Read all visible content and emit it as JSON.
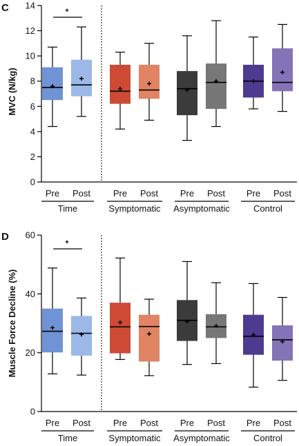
{
  "chart_data": [
    {
      "type": "boxplot",
      "panel": "C",
      "ylabel": "MVC (N/kg)",
      "ylim": [
        0,
        14
      ],
      "yticks": [
        "0",
        "2",
        "4",
        "6",
        "8",
        "10",
        "12",
        "14"
      ],
      "significance_marker": "*",
      "groups": [
        {
          "name": "Time",
          "categories": [
            {
              "label": "Pre",
              "color": "#6f93d4",
              "min": 4.4,
              "q1": 6.5,
              "median": 7.5,
              "q3": 9.1,
              "max": 10.7,
              "mean": 7.6
            },
            {
              "label": "Post",
              "color": "#9bb8e8",
              "min": 5.2,
              "q1": 6.8,
              "median": 7.7,
              "q3": 9.7,
              "max": 12.3,
              "mean": 8.2
            }
          ]
        },
        {
          "name": "Symptomatic",
          "categories": [
            {
              "label": "Pre",
              "color": "#cd4b34",
              "min": 4.2,
              "q1": 6.2,
              "median": 7.2,
              "q3": 9.3,
              "max": 10.3,
              "mean": 7.4
            },
            {
              "label": "Post",
              "color": "#e08464",
              "min": 4.9,
              "q1": 6.6,
              "median": 7.3,
              "q3": 9.3,
              "max": 11.0,
              "mean": 7.8
            }
          ]
        },
        {
          "name": "Asymptomatic",
          "categories": [
            {
              "label": "Pre",
              "color": "#3b3b3b",
              "min": 3.3,
              "q1": 5.3,
              "median": 7.4,
              "q3": 8.8,
              "max": 11.6,
              "mean": 7.3
            },
            {
              "label": "Post",
              "color": "#777777",
              "min": 4.4,
              "q1": 5.8,
              "median": 7.9,
              "q3": 9.4,
              "max": 12.8,
              "mean": 8.0
            }
          ]
        },
        {
          "name": "Control",
          "categories": [
            {
              "label": "Pre",
              "color": "#4c3b91",
              "min": 5.8,
              "q1": 6.7,
              "median": 8.0,
              "q3": 9.3,
              "max": 11.5,
              "mean": 8.0
            },
            {
              "label": "Post",
              "color": "#8473b6",
              "min": 5.6,
              "q1": 7.2,
              "median": 7.9,
              "q3": 10.6,
              "max": 12.5,
              "mean": 8.7
            }
          ]
        }
      ]
    },
    {
      "type": "boxplot",
      "panel": "D",
      "ylabel": "Muscle Force Decline (%)",
      "ylim": [
        0,
        60
      ],
      "yticks": [
        "0",
        "20",
        "40",
        "60"
      ],
      "significance_marker": "*",
      "groups": [
        {
          "name": "Time",
          "categories": [
            {
              "label": "Pre",
              "color": "#6f93d4",
              "min": 12.8,
              "q1": 20.1,
              "median": 27.3,
              "q3": 35.0,
              "max": 48.8,
              "mean": 28.5
            },
            {
              "label": "Post",
              "color": "#9bb8e8",
              "min": 12.4,
              "q1": 19.0,
              "median": 26.6,
              "q3": 32.5,
              "max": 38.6,
              "mean": 26.2
            }
          ]
        },
        {
          "name": "Symptomatic",
          "categories": [
            {
              "label": "Pre",
              "color": "#cd4b34",
              "min": 17.7,
              "q1": 19.8,
              "median": 28.8,
              "q3": 37.0,
              "max": 52.2,
              "mean": 30.3
            },
            {
              "label": "Post",
              "color": "#e08464",
              "min": 12.2,
              "q1": 17.0,
              "median": 28.9,
              "q3": 32.9,
              "max": 38.2,
              "mean": 26.4
            }
          ]
        },
        {
          "name": "Asymptomatic",
          "categories": [
            {
              "label": "Pre",
              "color": "#3b3b3b",
              "min": 16.0,
              "q1": 24.0,
              "median": 31.0,
              "q3": 37.9,
              "max": 51.0,
              "mean": 30.6
            },
            {
              "label": "Post",
              "color": "#777777",
              "min": 16.3,
              "q1": 25.0,
              "median": 28.8,
              "q3": 33.1,
              "max": 43.8,
              "mean": 29.1
            }
          ]
        },
        {
          "name": "Control",
          "categories": [
            {
              "label": "Pre",
              "color": "#4c3b91",
              "min": 8.3,
              "q1": 19.3,
              "median": 25.6,
              "q3": 32.9,
              "max": 43.5,
              "mean": 26.1
            },
            {
              "label": "Post",
              "color": "#8473b6",
              "min": 10.6,
              "q1": 17.3,
              "median": 24.4,
              "q3": 29.3,
              "max": 38.8,
              "mean": 23.8
            }
          ]
        }
      ]
    }
  ]
}
